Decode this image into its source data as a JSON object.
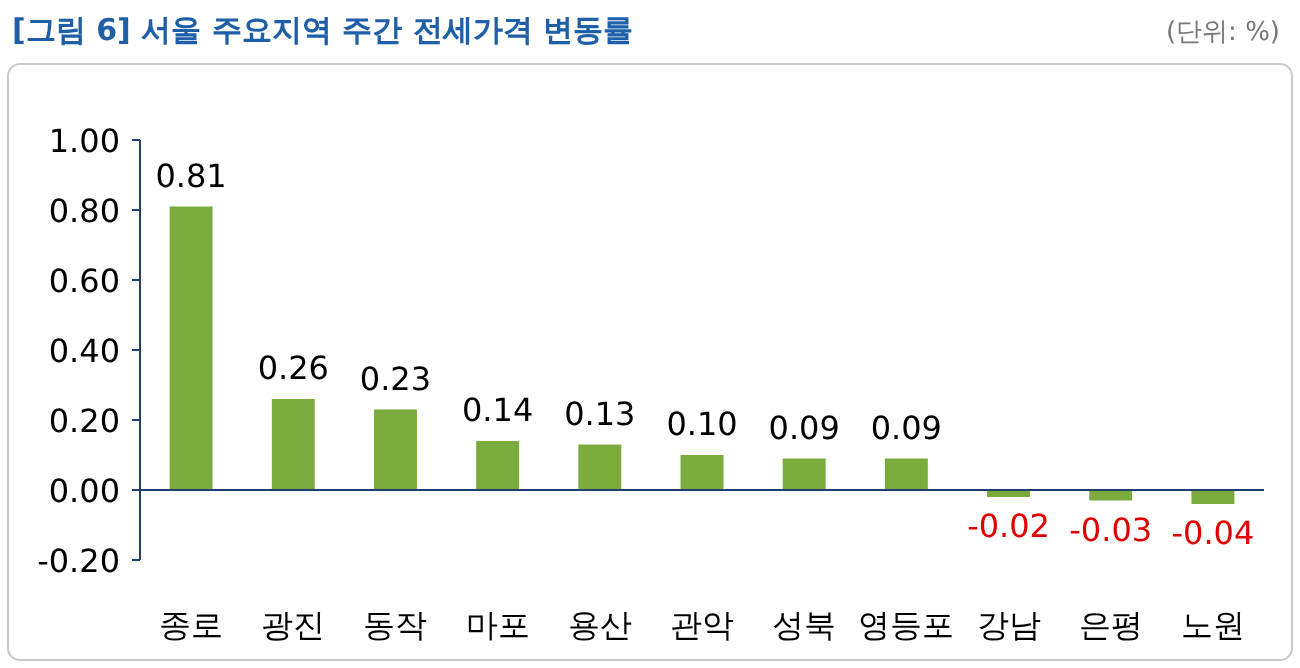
{
  "chart_data": {
    "type": "bar",
    "title": "[그림 6] 서울 주요지역 주간 전세가격 변동률",
    "annotations": [
      "(단위: %)"
    ],
    "categories": [
      "종로",
      "광진",
      "동작",
      "마포",
      "용산",
      "관악",
      "성북",
      "영등포",
      "강남",
      "은평",
      "노원"
    ],
    "values": [
      0.81,
      0.26,
      0.23,
      0.14,
      0.13,
      0.1,
      0.09,
      0.09,
      -0.02,
      -0.03,
      -0.04
    ],
    "value_labels": [
      "0.81",
      "0.26",
      "0.23",
      "0.14",
      "0.13",
      "0.10",
      "0.09",
      "0.09",
      "-0.02",
      "-0.03",
      "-0.04"
    ],
    "color": "#7aab3c",
    "ylim": [
      -0.2,
      1.0
    ],
    "yticks": [
      {
        "value": -0.2,
        "label": "-0.20"
      },
      {
        "value": 0,
        "label": "0.00"
      },
      {
        "value": 0.2,
        "label": "0.20"
      },
      {
        "value": 0.4,
        "label": "0.40"
      },
      {
        "value": 0.6,
        "label": "0.60"
      },
      {
        "value": 0.8,
        "label": "0.80"
      },
      {
        "value": 1.0,
        "label": "1.00"
      }
    ],
    "ref_lines": [
      {
        "axis": "y",
        "value": 0,
        "color": "#1f3f6f"
      }
    ],
    "grid": false,
    "legend": false
  }
}
